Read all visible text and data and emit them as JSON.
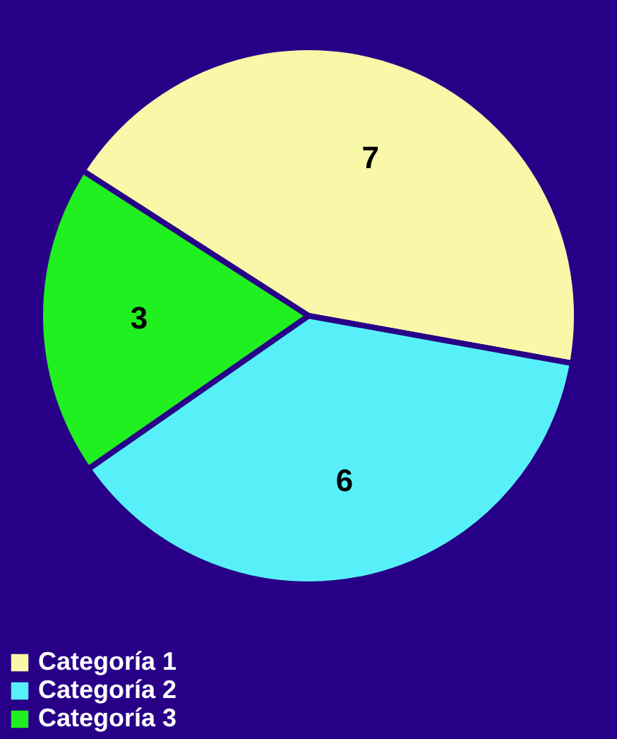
{
  "chart_data": {
    "type": "pie",
    "categories": [
      "Categoría 1",
      "Categoría 2",
      "Categoría 3"
    ],
    "values": [
      7,
      6,
      3
    ],
    "colors": [
      "#f8f8a8",
      "#58f0f8",
      "#20f020"
    ],
    "data_labels": true,
    "legend": "bottom"
  }
}
